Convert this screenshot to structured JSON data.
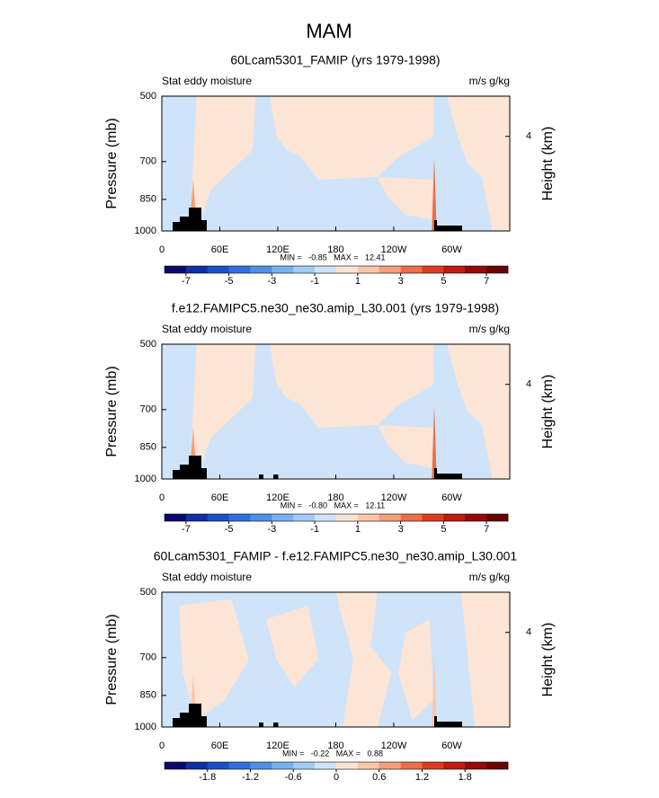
{
  "title": "MAM",
  "chart_data": [
    {
      "type": "contour",
      "title": "60Lcam5301_FAMIP (yrs 1979-1998)",
      "left_label": "Stat eddy moisture",
      "right_label": "m/s g/kg",
      "ylabel": "Pressure (mb)",
      "y2label": "Height (km)",
      "ylog": true,
      "ylim": [
        1000,
        500
      ],
      "yticks": [
        500,
        700,
        850,
        1000
      ],
      "y2lim": [
        0,
        5.7
      ],
      "y2ticks": [
        4
      ],
      "xlim": [
        0,
        360
      ],
      "xticks": [
        0,
        {
          "value": 60,
          "label": "60E"
        },
        {
          "value": 120,
          "label": "120E"
        },
        180,
        {
          "value": 240,
          "label": "120W"
        },
        {
          "value": 300,
          "label": "60W"
        }
      ],
      "stats": "MIN =   -0.85   MAX =   12.41",
      "colorbar": {
        "clim": [
          -8,
          8
        ],
        "ticks": [
          -7,
          -5,
          -3,
          -1,
          1,
          3,
          5,
          7
        ],
        "colors": [
          "#0a0a6e",
          "#0f2fa5",
          "#1c50c8",
          "#3070dc",
          "#5090e6",
          "#78b0ef",
          "#a2cbf4",
          "#cfe4f8",
          "#fde5d6",
          "#fbc6aa",
          "#f59e7a",
          "#ec6e4a",
          "#dc3c20",
          "#bd1a10",
          "#950a0a",
          "#6a0404"
        ]
      }
    },
    {
      "type": "contour",
      "title": "f.e12.FAMIPC5.ne30_ne30.amip_L30.001 (yrs 1979-1998)",
      "left_label": "Stat eddy moisture",
      "right_label": "m/s g/kg",
      "ylabel": "Pressure (mb)",
      "y2label": "Height (km)",
      "ylog": true,
      "ylim": [
        1000,
        500
      ],
      "yticks": [
        500,
        700,
        850,
        1000
      ],
      "y2lim": [
        0,
        5.7
      ],
      "y2ticks": [
        4
      ],
      "xlim": [
        0,
        360
      ],
      "xticks": [
        0,
        {
          "value": 60,
          "label": "60E"
        },
        {
          "value": 120,
          "label": "120E"
        },
        180,
        {
          "value": 240,
          "label": "120W"
        },
        {
          "value": 300,
          "label": "60W"
        }
      ],
      "stats": "MIN =   -0.80   MAX =   12.11",
      "colorbar": {
        "clim": [
          -8,
          8
        ],
        "ticks": [
          -7,
          -5,
          -3,
          -1,
          1,
          3,
          5,
          7
        ],
        "colors": [
          "#0a0a6e",
          "#0f2fa5",
          "#1c50c8",
          "#3070dc",
          "#5090e6",
          "#78b0ef",
          "#a2cbf4",
          "#cfe4f8",
          "#fde5d6",
          "#fbc6aa",
          "#f59e7a",
          "#ec6e4a",
          "#dc3c20",
          "#bd1a10",
          "#950a0a",
          "#6a0404"
        ]
      }
    },
    {
      "type": "contour",
      "title": "60Lcam5301_FAMIP - f.e12.FAMIPC5.ne30_ne30.amip_L30.001",
      "left_label": "Stat eddy moisture",
      "right_label": "m/s g/kg",
      "ylabel": "Pressure (mb)",
      "y2label": "Height (km)",
      "ylog": true,
      "ylim": [
        1000,
        500
      ],
      "yticks": [
        500,
        700,
        850,
        1000
      ],
      "y2lim": [
        0,
        5.7
      ],
      "y2ticks": [
        4
      ],
      "xlim": [
        0,
        360
      ],
      "xticks": [
        0,
        {
          "value": 60,
          "label": "60E"
        },
        {
          "value": 120,
          "label": "120E"
        },
        180,
        {
          "value": 240,
          "label": "120W"
        },
        {
          "value": 300,
          "label": "60W"
        }
      ],
      "stats": "MIN =   -0.22   MAX =   0.88",
      "colorbar": {
        "clim": [
          -2.4,
          2.4
        ],
        "ticks": [
          -1.8,
          -1.2,
          -0.6,
          0,
          0.6,
          1.2,
          1.8
        ],
        "colors": [
          "#0a0a6e",
          "#0f2fa5",
          "#1c50c8",
          "#3070dc",
          "#5090e6",
          "#78b0ef",
          "#a2cbf4",
          "#cfe4f8",
          "#fde5d6",
          "#fbc6aa",
          "#f59e7a",
          "#ec6e4a",
          "#dc3c20",
          "#bd1a10",
          "#950a0a",
          "#6a0404"
        ]
      }
    }
  ]
}
